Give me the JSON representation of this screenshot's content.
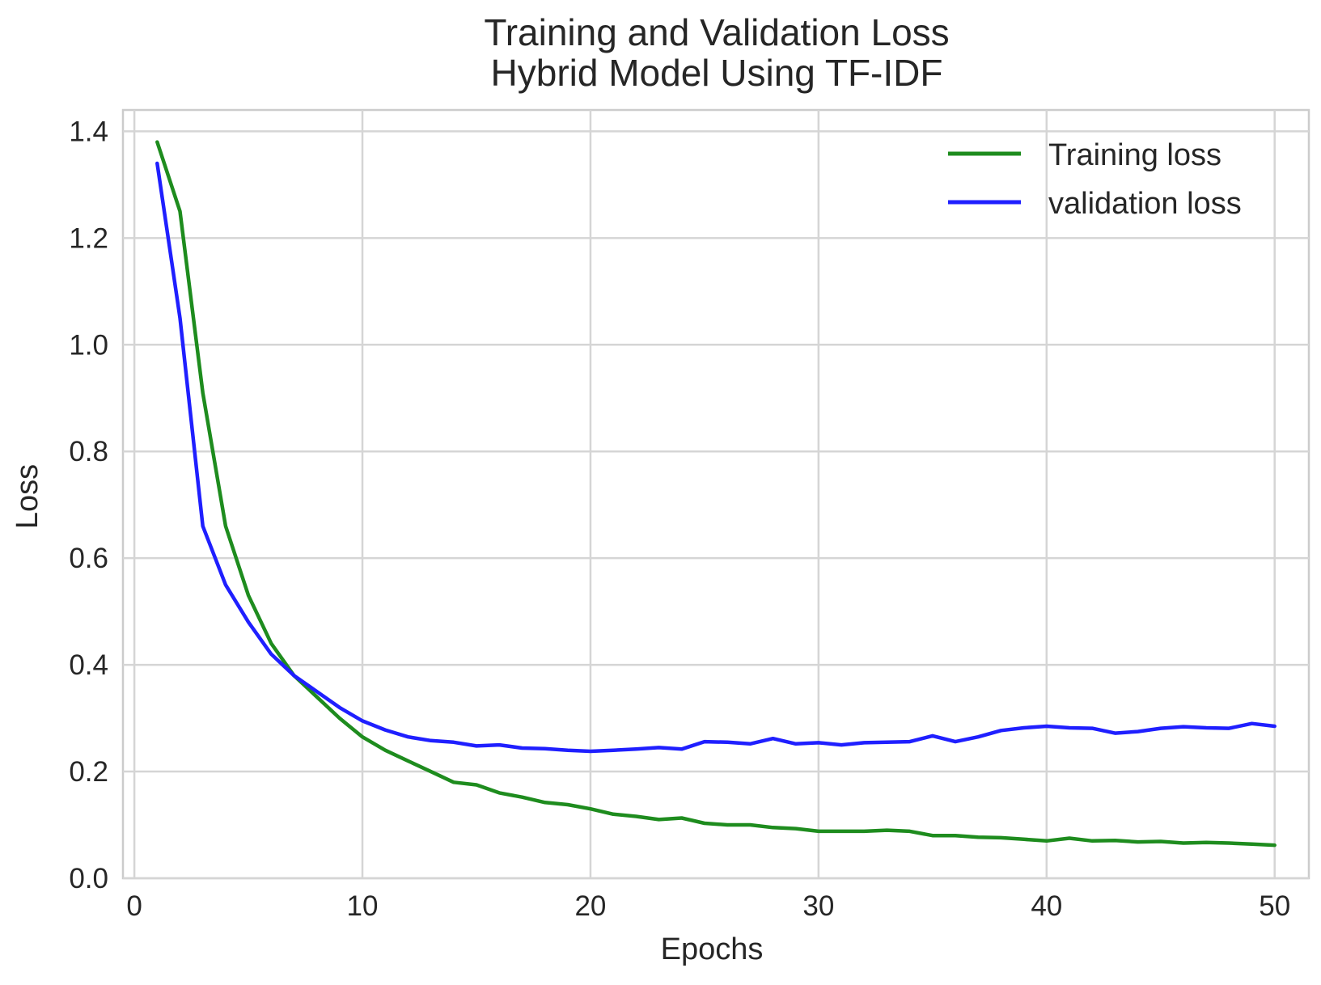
{
  "chart_data": {
    "type": "line",
    "title": "Training and Validation Loss",
    "subtitle": "Hybrid Model Using TF-IDF",
    "xlabel": "Epochs",
    "ylabel": "Loss",
    "xlim": [
      -0.5,
      51.5
    ],
    "ylim": [
      0.0,
      1.44
    ],
    "xticks": [
      0,
      10,
      20,
      30,
      40,
      50
    ],
    "yticks": [
      0.0,
      0.2,
      0.4,
      0.6,
      0.8,
      1.0,
      1.2,
      1.4
    ],
    "xtick_labels": [
      "0",
      "10",
      "20",
      "30",
      "40",
      "50"
    ],
    "ytick_labels": [
      "0.0",
      "0.2",
      "0.4",
      "0.6",
      "0.8",
      "1.0",
      "1.2",
      "1.4"
    ],
    "grid": true,
    "legend_position": "top-right",
    "x": [
      1,
      2,
      3,
      4,
      5,
      6,
      7,
      8,
      9,
      10,
      11,
      12,
      13,
      14,
      15,
      16,
      17,
      18,
      19,
      20,
      21,
      22,
      23,
      24,
      25,
      26,
      27,
      28,
      29,
      30,
      31,
      32,
      33,
      34,
      35,
      36,
      37,
      38,
      39,
      40,
      41,
      42,
      43,
      44,
      45,
      46,
      47,
      48,
      49,
      50
    ],
    "series": [
      {
        "name": "Training loss",
        "color": "#1e8c1e",
        "values": [
          1.38,
          1.25,
          0.91,
          0.66,
          0.53,
          0.44,
          0.38,
          0.34,
          0.3,
          0.265,
          0.24,
          0.22,
          0.2,
          0.18,
          0.175,
          0.16,
          0.152,
          0.142,
          0.138,
          0.13,
          0.12,
          0.116,
          0.11,
          0.113,
          0.103,
          0.1,
          0.1,
          0.095,
          0.093,
          0.088,
          0.088,
          0.088,
          0.09,
          0.088,
          0.08,
          0.08,
          0.077,
          0.076,
          0.073,
          0.07,
          0.075,
          0.07,
          0.071,
          0.068,
          0.069,
          0.066,
          0.067,
          0.066,
          0.064,
          0.062
        ]
      },
      {
        "name": "validation loss",
        "color": "#1f1fff",
        "values": [
          1.34,
          1.05,
          0.66,
          0.55,
          0.48,
          0.42,
          0.38,
          0.35,
          0.32,
          0.295,
          0.278,
          0.265,
          0.258,
          0.255,
          0.248,
          0.25,
          0.244,
          0.243,
          0.24,
          0.238,
          0.24,
          0.242,
          0.245,
          0.242,
          0.256,
          0.255,
          0.252,
          0.262,
          0.252,
          0.254,
          0.25,
          0.254,
          0.255,
          0.256,
          0.267,
          0.256,
          0.265,
          0.277,
          0.282,
          0.285,
          0.282,
          0.281,
          0.272,
          0.275,
          0.281,
          0.284,
          0.282,
          0.281,
          0.29,
          0.285
        ]
      }
    ]
  }
}
